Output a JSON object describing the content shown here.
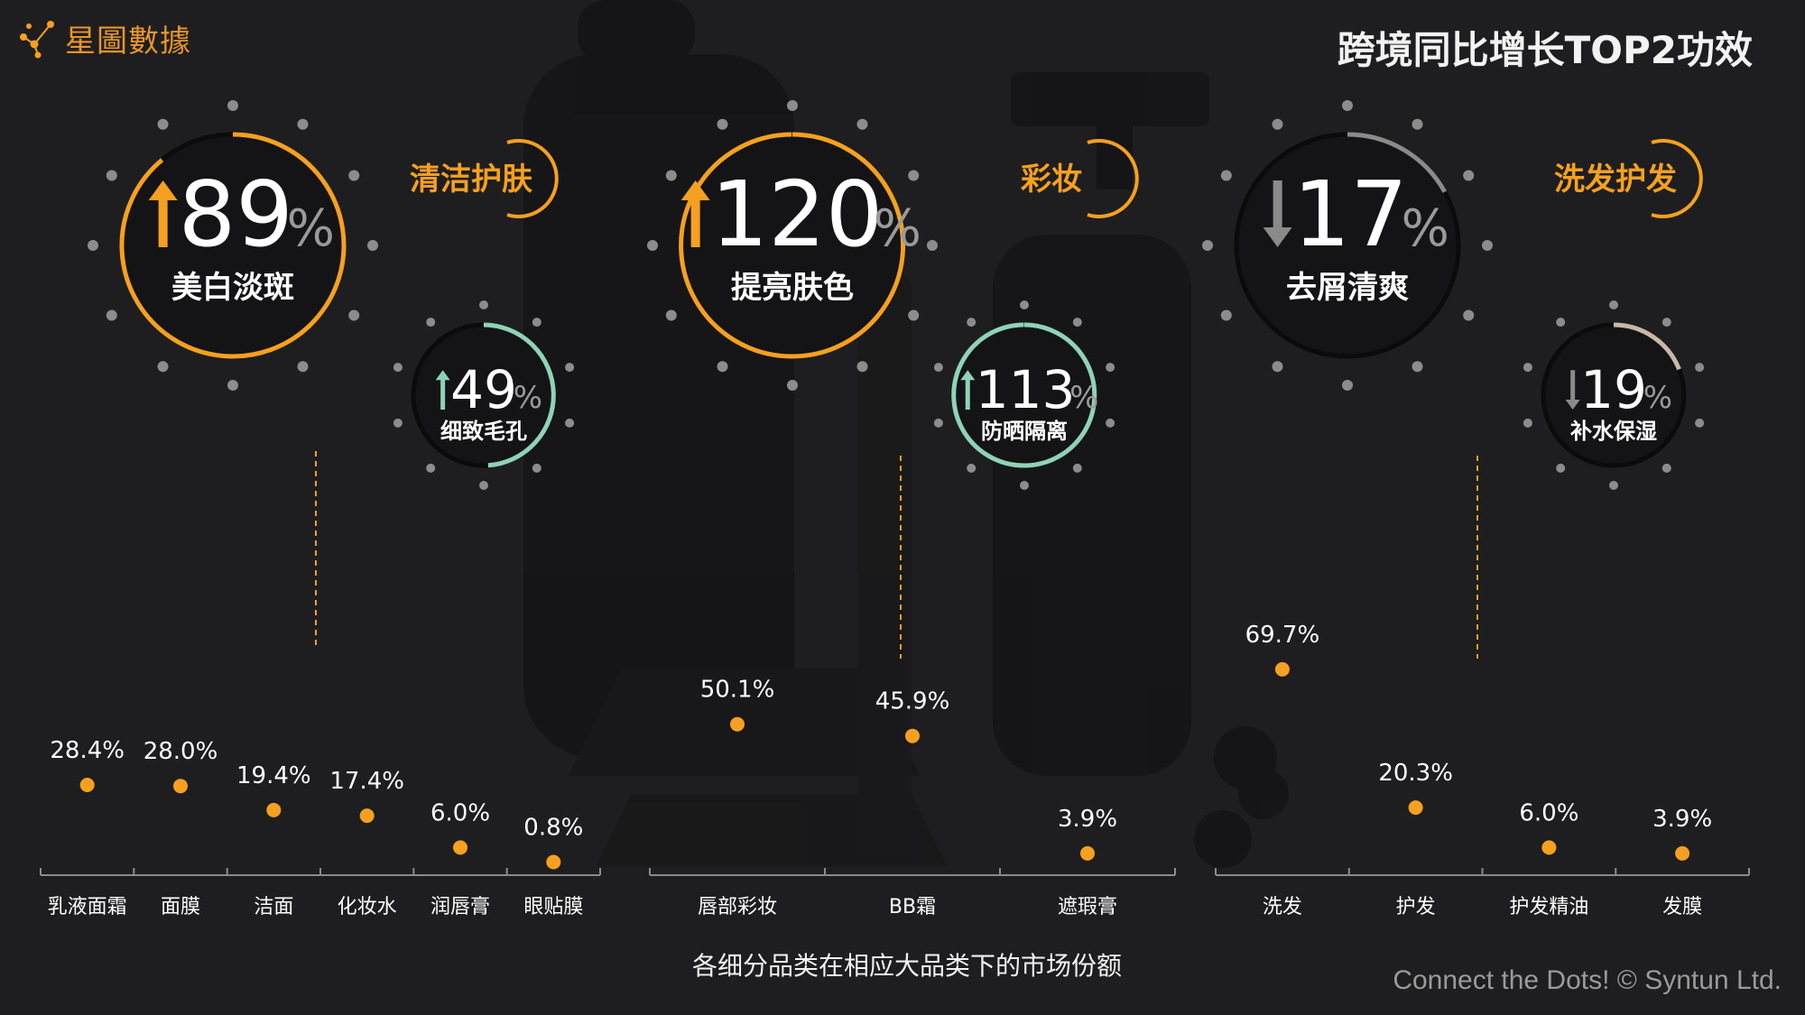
{
  "brand": {
    "logo_text": "星圖數據",
    "logo_icon": "constellation-icon",
    "accent": "#f5a020"
  },
  "title": "跨境同比增长TOP2功效",
  "footer": "Connect the Dots! © Syntun Ltd.",
  "bottom_caption": "各细分品类在相应大品类下的市场份额",
  "percent_sign": "%",
  "groups": [
    {
      "category": "清洁护肤",
      "main": {
        "value": "89",
        "direction": "up",
        "label": "美白淡斑",
        "color": "#f5a020",
        "fraction": 0.89
      },
      "secondary": {
        "value": "49",
        "direction": "up",
        "label": "细致毛孔",
        "color": "#8fd3b6",
        "fraction": 0.49
      }
    },
    {
      "category": "彩妆",
      "main": {
        "value": "120",
        "direction": "up",
        "label": "提亮肤色",
        "color": "#f5a020",
        "fraction": 1.0
      },
      "secondary": {
        "value": "113",
        "direction": "up",
        "label": "防晒隔离",
        "color": "#8fd3b6",
        "fraction": 1.0
      }
    },
    {
      "category": "洗发护发",
      "main": {
        "value": "17",
        "direction": "down",
        "label": "去屑清爽",
        "color": "#8a8a8a",
        "fraction": 0.17
      },
      "secondary": {
        "value": "19",
        "direction": "down",
        "label": "补水保湿",
        "color": "#c9b8a8",
        "fraction": 0.19
      }
    }
  ],
  "chart_data": [
    {
      "type": "scatter",
      "title": "",
      "categories": [
        "乳液面霜",
        "面膜",
        "洁面",
        "化妆水",
        "润唇膏",
        "眼贴膜"
      ],
      "values": [
        28.4,
        28.0,
        19.4,
        17.4,
        6.0,
        0.8
      ],
      "labels": [
        "28.4%",
        "28.0%",
        "19.4%",
        "17.4%",
        "6.0%",
        "0.8%"
      ],
      "ylim": [
        0,
        80
      ]
    },
    {
      "type": "scatter",
      "title": "",
      "categories": [
        "唇部彩妆",
        "BB霜",
        "遮瑕膏"
      ],
      "values": [
        50.1,
        45.9,
        3.9
      ],
      "labels": [
        "50.1%",
        "45.9%",
        "3.9%"
      ],
      "ylim": [
        0,
        80
      ]
    },
    {
      "type": "scatter",
      "title": "",
      "categories": [
        "洗发",
        "护发",
        "护发精油",
        "发膜"
      ],
      "values": [
        69.7,
        20.3,
        6.0,
        3.9
      ],
      "labels": [
        "69.7%",
        "20.3%",
        "6.0%",
        "3.9%"
      ],
      "ylim": [
        0,
        80
      ]
    }
  ]
}
